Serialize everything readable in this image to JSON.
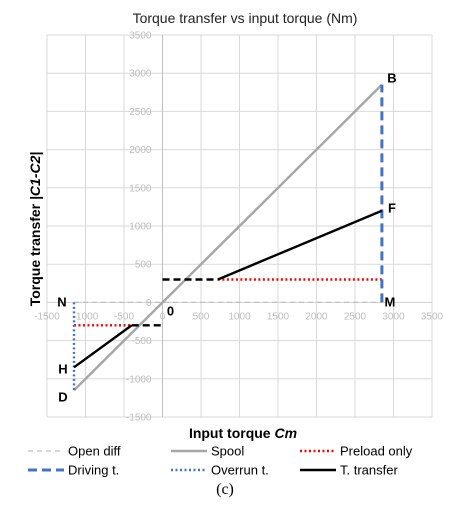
{
  "chart_data": {
    "type": "line",
    "title": "Torque transfer vs input torque (Nm)",
    "xlabel_main": "Input torque ",
    "xlabel_italic": "Cm",
    "ylabel_main": "Torque transfer ",
    "ylabel_italic": "|C1-C2|",
    "xlim": [
      -1500,
      3500
    ],
    "ylim": [
      -1500,
      3500
    ],
    "x_ticks": [
      -1500,
      -1000,
      -500,
      0,
      500,
      1000,
      1500,
      2000,
      2500,
      3000,
      3500
    ],
    "y_ticks": [
      -1500,
      -1000,
      -500,
      0,
      500,
      1000,
      1500,
      2000,
      2500,
      3000,
      3500
    ],
    "x_tick_labels": [
      "-1500",
      "-1000",
      "-500",
      "0",
      "500",
      "1000",
      "1500",
      "2000",
      "2500",
      "3000",
      "3500"
    ],
    "y_tick_labels": [
      "-1500",
      "-1000",
      "-500",
      "0",
      "500",
      "1000",
      "1500",
      "2000",
      "2500",
      "3000",
      "3500"
    ],
    "grid": true,
    "legend_position": "bottom",
    "series": [
      {
        "name": "Open diff",
        "style": "gray-dashed",
        "color": "#bfbfbf",
        "points": [
          [
            -1150,
            0
          ],
          [
            2850,
            0
          ]
        ]
      },
      {
        "name": "Spool",
        "style": "gray-solid",
        "color": "#a6a6a6",
        "points": [
          [
            -1150,
            -1150
          ],
          [
            2850,
            2850
          ]
        ]
      },
      {
        "name": "Preload only",
        "style": "red-dotted",
        "color": "#ff0000",
        "segments": [
          [
            [
              -1150,
              -300
            ],
            [
              -400,
              -300
            ]
          ],
          [
            [
              720,
              300
            ],
            [
              2850,
              300
            ]
          ]
        ]
      },
      {
        "name": "Driving t.",
        "style": "blue-dashed",
        "color": "#4472c4",
        "points": [
          [
            2850,
            0
          ],
          [
            2850,
            2850
          ]
        ]
      },
      {
        "name": "Overrun t.",
        "style": "blue-dotted",
        "color": "#4472c4",
        "points": [
          [
            -1150,
            0
          ],
          [
            -1150,
            -1150
          ]
        ]
      },
      {
        "name": "T. transfer",
        "style": "black-solid",
        "color": "#000000",
        "segments": [
          [
            [
              -1150,
              -850
            ],
            [
              -400,
              -300
            ]
          ],
          [
            [
              720,
              300
            ],
            [
              2850,
              1200
            ]
          ],
          [
            [
              -400,
              -300
            ],
            [
              0,
              -300
            ]
          ],
          [
            [
              0,
              300
            ],
            [
              720,
              300
            ]
          ]
        ]
      }
    ],
    "point_labels": [
      {
        "label": "B",
        "x": 2850,
        "y": 2850
      },
      {
        "label": "F",
        "x": 2850,
        "y": 1200
      },
      {
        "label": "M",
        "x": 2850,
        "y": 0
      },
      {
        "label": "N",
        "x": -1150,
        "y": 0
      },
      {
        "label": "0",
        "x": 0,
        "y": 0
      },
      {
        "label": "H",
        "x": -1150,
        "y": -850
      },
      {
        "label": "D",
        "x": -1150,
        "y": -1150
      }
    ],
    "caption": "(c)"
  }
}
